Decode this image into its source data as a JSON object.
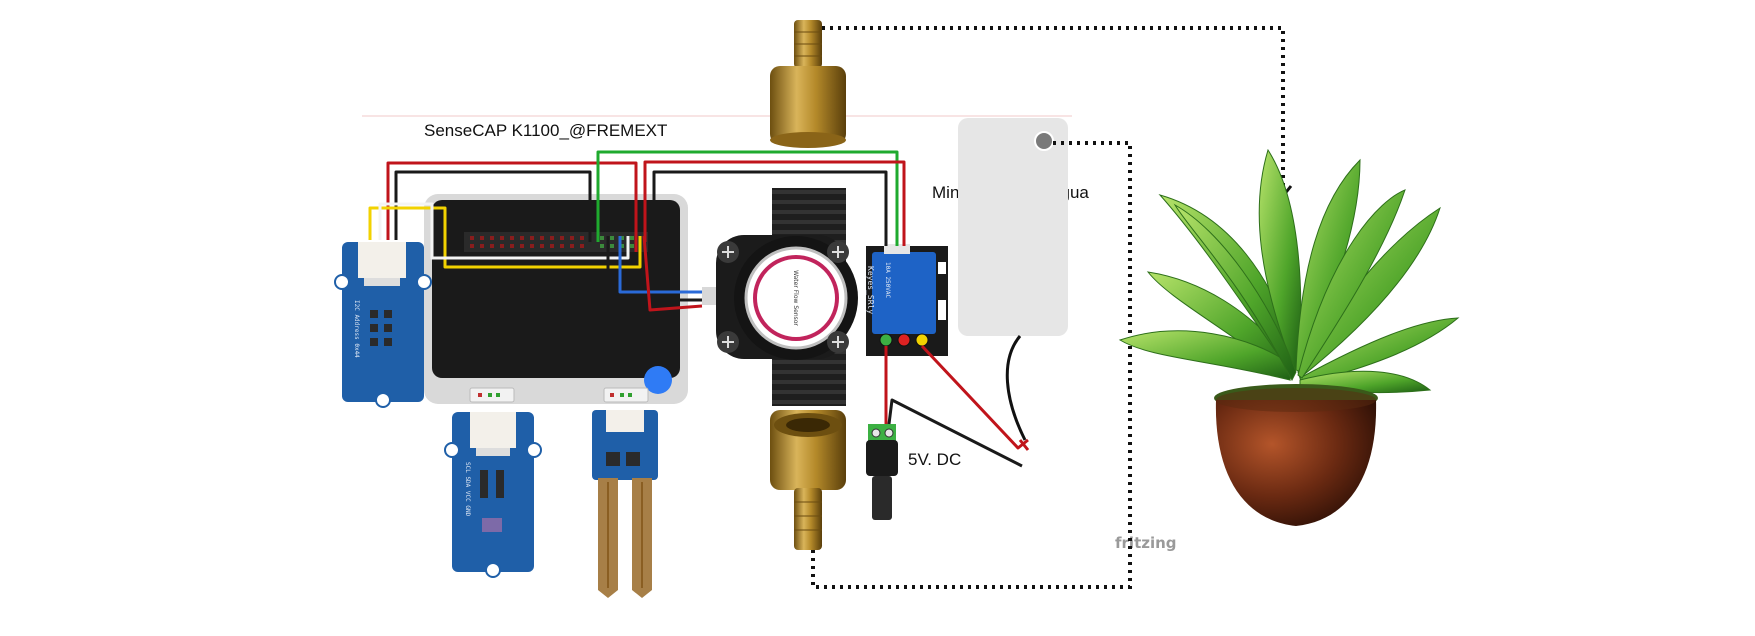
{
  "labels": {
    "device_title": "SenseCAP K1100_@FREMEXT",
    "pump": "Mini Bomba de Agua",
    "power": "5V. DC",
    "watermark": "fritzing"
  },
  "parts": {
    "relay_brand": "Keyes_SRly",
    "relay_rating": "10A 250VAC",
    "flow_sensor_text": "Water Flow Sensor",
    "grove_left_text": "I2C Address 0x44",
    "grove_mid_text": "SCL SDA VCC GND"
  },
  "colors": {
    "wire_red": "#c0141b",
    "wire_black": "#1a1a1a",
    "wire_green": "#1faa2e",
    "wire_yellow": "#f2d200",
    "wire_white": "#f4f4f4",
    "wire_blue": "#2a6ad8",
    "pcb_blue": "#1f5fa8",
    "relay_blue": "#1e63c6",
    "brass": "#b58a2a",
    "pump_body": "#e6e6e6",
    "indicator_blue": "#2f7bf5"
  },
  "icons": [
    "plant-image",
    "brass-fitting",
    "flow-sensor",
    "relay-module",
    "dc-jack",
    "soil-moisture-probe"
  ]
}
